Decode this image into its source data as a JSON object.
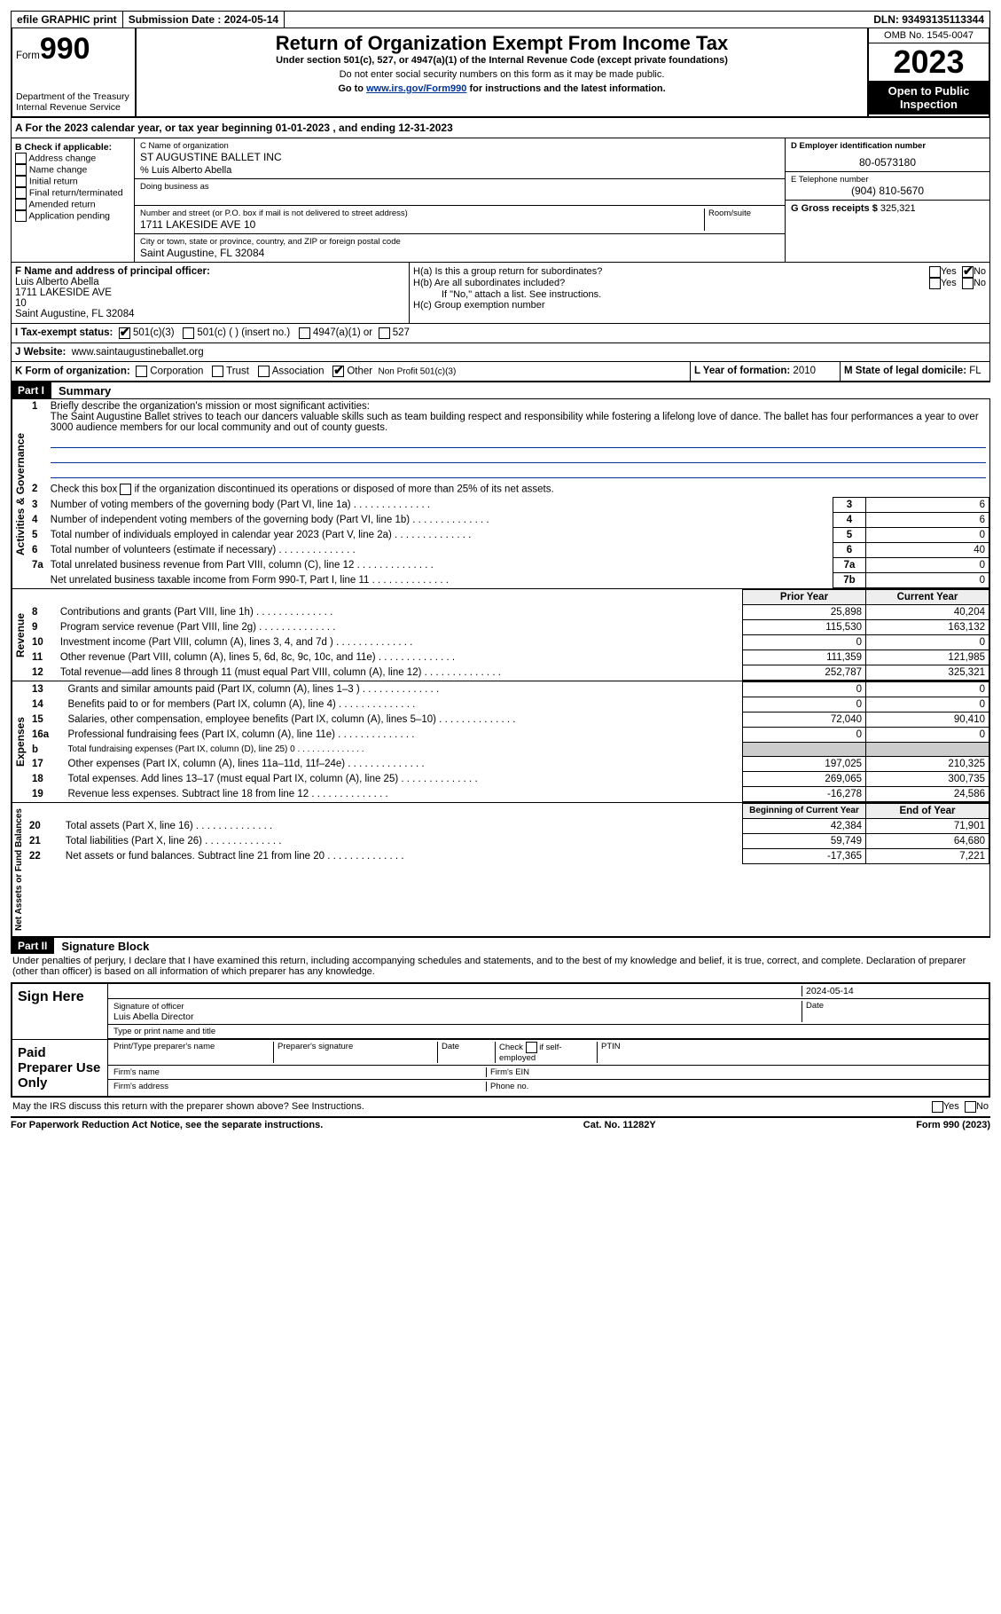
{
  "top": {
    "efile": "efile GRAPHIC print",
    "submission_label": "Submission Date : 2024-05-14",
    "dln_label": "DLN: 93493135113344"
  },
  "header": {
    "form_label": "Form",
    "form_number": "990",
    "dept": "Department of the Treasury\nInternal Revenue Service",
    "title": "Return of Organization Exempt From Income Tax",
    "sub1": "Under section 501(c), 527, or 4947(a)(1) of the Internal Revenue Code (except private foundations)",
    "sub2": "Do not enter social security numbers on this form as it may be made public.",
    "sub3_prefix": "Go to ",
    "sub3_link": "www.irs.gov/Form990",
    "sub3_suffix": " for instructions and the latest information.",
    "omb": "OMB No. 1545-0047",
    "year": "2023",
    "inspect": "Open to Public Inspection"
  },
  "a": "A For the 2023 calendar year, or tax year beginning 01-01-2023   , and ending 12-31-2023",
  "b": {
    "title": "B Check if applicable:",
    "items": [
      "Address change",
      "Name change",
      "Initial return",
      "Final return/terminated",
      "Amended return",
      "Application pending"
    ]
  },
  "c": {
    "name_lbl": "C Name of organization",
    "name": "ST AUGUSTINE BALLET INC",
    "care_of": "% Luis Alberto Abella",
    "dba_lbl": "Doing business as",
    "street_lbl": "Number and street (or P.O. box if mail is not delivered to street address)",
    "room_lbl": "Room/suite",
    "street": "1711 LAKESIDE AVE 10",
    "city_lbl": "City or town, state or province, country, and ZIP or foreign postal code",
    "city": "Saint Augustine, FL  32084"
  },
  "d": {
    "lbl": "D Employer identification number",
    "val": "80-0573180"
  },
  "e": {
    "lbl": "E Telephone number",
    "val": "(904) 810-5670"
  },
  "g": {
    "lbl": "G Gross receipts $",
    "val": "325,321"
  },
  "f": {
    "lbl": "F Name and address of principal officer:",
    "lines": [
      "Luis Alberto Abella",
      "1711 LAKESIDE AVE",
      "10",
      "Saint Augustine, FL  32084"
    ]
  },
  "h": {
    "a": "H(a)  Is this a group return for subordinates?",
    "b": "H(b)  Are all subordinates included?",
    "note": "If \"No,\" attach a list. See instructions.",
    "c": "H(c)  Group exemption number",
    "yes": "Yes",
    "no": "No"
  },
  "i": {
    "lbl": "I   Tax-exempt status:",
    "a": "501(c)(3)",
    "b": "501(c) (  ) (insert no.)",
    "c": "4947(a)(1) or",
    "d": "527"
  },
  "j": {
    "lbl": "J   Website:",
    "val": "www.saintaugustineballet.org"
  },
  "k": {
    "lbl": "K Form of organization:",
    "corp": "Corporation",
    "trust": "Trust",
    "assoc": "Association",
    "other": "Other",
    "other_val": "Non Profit 501(c)(3)"
  },
  "l": {
    "lbl": "L Year of formation:",
    "val": "2010"
  },
  "m": {
    "lbl": "M State of legal domicile:",
    "val": "FL"
  },
  "part1": {
    "bar": "Part I",
    "title": "Summary"
  },
  "govern_lbl": "Activities & Governance",
  "rev_lbl": "Revenue",
  "exp_lbl": "Expenses",
  "net_lbl": "Net Assets or Fund Balances",
  "lines_top": {
    "l1_lbl": "Briefly describe the organization's mission or most significant activities:",
    "l1": "The Saint Augustine Ballet strives to teach our dancers valuable skills such as team building respect and responsibility while fostering a lifelong love of dance. The ballet has four performances a year to over 3000 audience members for our local community and out of county guests.",
    "l2": "Check this box         if the organization discontinued its operations or disposed of more than 25% of its net assets."
  },
  "lines": [
    {
      "n": "3",
      "t": "Number of voting members of the governing body (Part VI, line 1a)",
      "box": "3",
      "v": "6"
    },
    {
      "n": "4",
      "t": "Number of independent voting members of the governing body (Part VI, line 1b)",
      "box": "4",
      "v": "6"
    },
    {
      "n": "5",
      "t": "Total number of individuals employed in calendar year 2023 (Part V, line 2a)",
      "box": "5",
      "v": "0"
    },
    {
      "n": "6",
      "t": "Total number of volunteers (estimate if necessary)",
      "box": "6",
      "v": "40"
    },
    {
      "n": "7a",
      "t": "Total unrelated business revenue from Part VIII, column (C), line 12",
      "box": "7a",
      "v": "0"
    },
    {
      "n": "",
      "t": "Net unrelated business taxable income from Form 990-T, Part I, line 11",
      "box": "7b",
      "v": "0"
    }
  ],
  "py_hdr": "Prior Year",
  "cy_hdr": "Current Year",
  "rev_lines": [
    {
      "n": "8",
      "t": "Contributions and grants (Part VIII, line 1h)",
      "py": "25,898",
      "cy": "40,204"
    },
    {
      "n": "9",
      "t": "Program service revenue (Part VIII, line 2g)",
      "py": "115,530",
      "cy": "163,132"
    },
    {
      "n": "10",
      "t": "Investment income (Part VIII, column (A), lines 3, 4, and 7d )",
      "py": "0",
      "cy": "0"
    },
    {
      "n": "11",
      "t": "Other revenue (Part VIII, column (A), lines 5, 6d, 8c, 9c, 10c, and 11e)",
      "py": "111,359",
      "cy": "121,985"
    },
    {
      "n": "12",
      "t": "Total revenue—add lines 8 through 11 (must equal Part VIII, column (A), line 12)",
      "py": "252,787",
      "cy": "325,321"
    }
  ],
  "exp_lines": [
    {
      "n": "13",
      "t": "Grants and similar amounts paid (Part IX, column (A), lines 1–3 )",
      "py": "0",
      "cy": "0"
    },
    {
      "n": "14",
      "t": "Benefits paid to or for members (Part IX, column (A), line 4)",
      "py": "0",
      "cy": "0"
    },
    {
      "n": "15",
      "t": "Salaries, other compensation, employee benefits (Part IX, column (A), lines 5–10)",
      "py": "72,040",
      "cy": "90,410"
    },
    {
      "n": "16a",
      "t": "Professional fundraising fees (Part IX, column (A), line 11e)",
      "py": "0",
      "cy": "0"
    },
    {
      "n": "b",
      "t": "Total fundraising expenses (Part IX, column (D), line 25) 0",
      "py": "",
      "cy": "",
      "shaded": true,
      "small": true
    },
    {
      "n": "17",
      "t": "Other expenses (Part IX, column (A), lines 11a–11d, 11f–24e)",
      "py": "197,025",
      "cy": "210,325"
    },
    {
      "n": "18",
      "t": "Total expenses. Add lines 13–17 (must equal Part IX, column (A), line 25)",
      "py": "269,065",
      "cy": "300,735"
    },
    {
      "n": "19",
      "t": "Revenue less expenses. Subtract line 18 from line 12",
      "py": "-16,278",
      "cy": "24,586"
    }
  ],
  "bcy_hdr": "Beginning of Current Year",
  "ecy_hdr": "End of Year",
  "net_lines": [
    {
      "n": "20",
      "t": "Total assets (Part X, line 16)",
      "py": "42,384",
      "cy": "71,901"
    },
    {
      "n": "21",
      "t": "Total liabilities (Part X, line 26)",
      "py": "59,749",
      "cy": "64,680"
    },
    {
      "n": "22",
      "t": "Net assets or fund balances. Subtract line 21 from line 20",
      "py": "-17,365",
      "cy": "7,221"
    }
  ],
  "part2": {
    "bar": "Part II",
    "title": "Signature Block"
  },
  "penalty": "Under penalties of perjury, I declare that I have examined this return, including accompanying schedules and statements, and to the best of my knowledge and belief, it is true, correct, and complete. Declaration of preparer (other than officer) is based on all information of which preparer has any knowledge.",
  "sign": {
    "here": "Sign Here",
    "date": "2024-05-14",
    "sig_lbl": "Signature of officer",
    "officer": "Luis Abella  Director",
    "type_lbl": "Type or print name and title",
    "date_lbl": "Date"
  },
  "paid": {
    "lbl": "Paid Preparer Use Only",
    "name_lbl": "Print/Type preparer's name",
    "sig_lbl": "Preparer's signature",
    "date_lbl": "Date",
    "check_lbl": "Check         if self-employed",
    "ptin_lbl": "PTIN",
    "firm_lbl": "Firm's name",
    "ein_lbl": "Firm's EIN",
    "addr_lbl": "Firm's address",
    "phone_lbl": "Phone no."
  },
  "discuss": "May the IRS discuss this return with the preparer shown above? See Instructions.",
  "foot": {
    "l": "For Paperwork Reduction Act Notice, see the separate instructions.",
    "m": "Cat. No. 11282Y",
    "r": "Form 990 (2023)"
  }
}
